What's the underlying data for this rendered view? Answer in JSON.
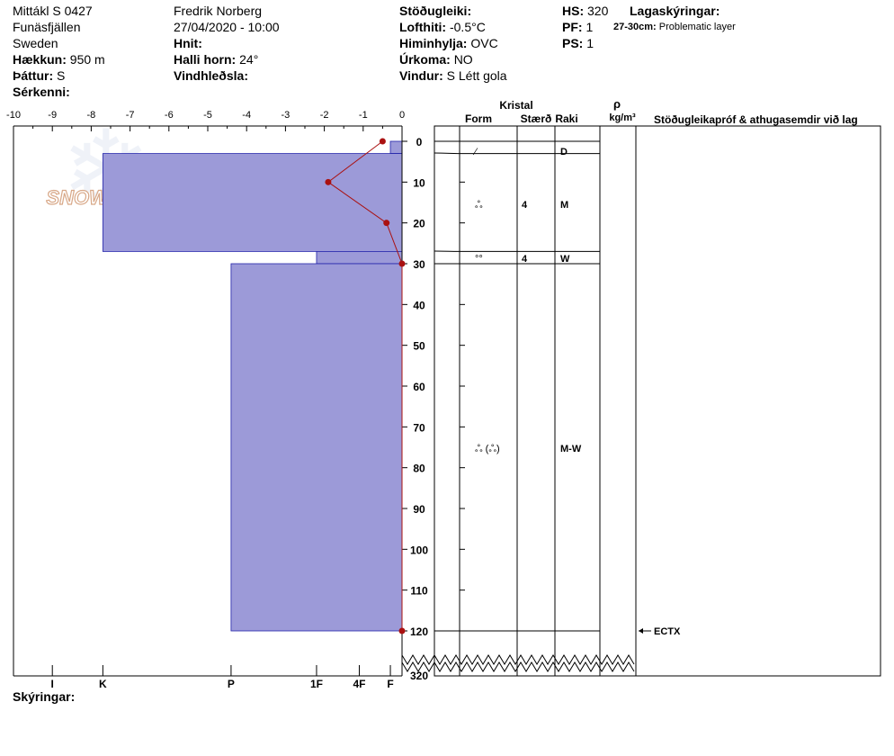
{
  "header": {
    "col1": [
      {
        "key": "",
        "value": "Mittákl S 0427"
      },
      {
        "key": "",
        "value": "Funäsfjällen"
      },
      {
        "key": "",
        "value": "Sweden"
      },
      {
        "key": "Hækkun:",
        "value": "950 m"
      },
      {
        "key": "Þáttur:",
        "value": "S"
      },
      {
        "key": "Sérkenni:",
        "value": ""
      }
    ],
    "col2": [
      {
        "key": "",
        "value": "Fredrik Norberg"
      },
      {
        "key": "",
        "value": "27/04/2020 - 10:00"
      },
      {
        "key": "Hnit:",
        "value": ""
      },
      {
        "key": "Halli horn:",
        "value": "24°"
      },
      {
        "key": "Vindhleðsla:",
        "value": ""
      }
    ],
    "col3": [
      {
        "key": "Stöðugleiki:",
        "value": ""
      },
      {
        "key": "Lofthiti:",
        "value": "-0.5°C"
      },
      {
        "key": "Himinhylja:",
        "value": "OVC"
      },
      {
        "key": "Úrkoma:",
        "value": "NO"
      },
      {
        "key": "Vindur:",
        "value": "S Létt gola"
      }
    ],
    "col4": [
      {
        "key": "HS:",
        "value": "320"
      },
      {
        "key": "PF:",
        "value": "1"
      },
      {
        "key": "PS:",
        "value": "1"
      }
    ],
    "layer_notes_title": "Lagaskýringar:",
    "layer_notes": [
      {
        "key": "27-30cm:",
        "value": "Problematic layer"
      }
    ],
    "footer_label": "Skýringar:",
    "watermark": "SNOWPILOT"
  },
  "chart_data": {
    "type": "bar",
    "colors": {
      "hardness_fill": "#9c9ad8",
      "hardness_stroke": "#2222aa",
      "temp_line": "#aa1111"
    },
    "x_axis_temperature": {
      "range": [
        -10,
        0
      ],
      "ticks": [
        "-10",
        "-9",
        "-8",
        "-7",
        "-6",
        "-5",
        "-4",
        "-3",
        "-2",
        "-1",
        "0"
      ]
    },
    "x_axis_hardness": {
      "labels": [
        {
          "label": "I",
          "temp": -9.0
        },
        {
          "label": "K",
          "temp": -7.7
        },
        {
          "label": "P",
          "temp": -4.4
        },
        {
          "label": "1F",
          "temp": -2.2
        },
        {
          "label": "4F",
          "temp": -1.1
        },
        {
          "label": "F",
          "temp": -0.3
        }
      ]
    },
    "y_axis_depth": {
      "range": [
        0,
        120
      ],
      "bottom_label": "320",
      "ticks": [
        "0",
        "10",
        "20",
        "30",
        "40",
        "50",
        "60",
        "70",
        "80",
        "90",
        "100",
        "110",
        "120"
      ]
    },
    "hardness_layers": [
      {
        "top": 0,
        "bottom": 3,
        "hardness": "F"
      },
      {
        "top": 3,
        "bottom": 27,
        "hardness": "K"
      },
      {
        "top": 27,
        "bottom": 30,
        "hardness": "1F"
      },
      {
        "top": 30,
        "bottom": 120,
        "hardness": "P"
      }
    ],
    "temperature_profile": [
      {
        "depth": 0,
        "temp": -0.5
      },
      {
        "depth": 10,
        "temp": -1.9
      },
      {
        "depth": 20,
        "temp": -0.4
      },
      {
        "depth": 30,
        "temp": 0.0
      },
      {
        "depth": 120,
        "temp": 0.0
      }
    ],
    "table_headers": {
      "kristal": "Kristal",
      "form": "Form",
      "size": "Stærð",
      "moisture": "Raki",
      "density_symbol": "ρ",
      "density_unit": "kg/m³",
      "comments": "Stöðugleikapróf & athugasemdir við lag"
    },
    "table_layers": [
      {
        "top": 0,
        "bottom": 3,
        "form": "⁄",
        "size": "",
        "moisture": "D"
      },
      {
        "top": 3,
        "bottom": 27,
        "form": "ஃ",
        "size": "4",
        "moisture": "M"
      },
      {
        "top": 27,
        "bottom": 30,
        "form": "°°",
        "size": "4",
        "moisture": "W"
      },
      {
        "top": 30,
        "bottom": 120,
        "form": "ஃ (ஃ)",
        "size": "",
        "moisture": "M-W"
      }
    ],
    "stability_tests": [
      {
        "depth": 120,
        "label": "ECTX"
      }
    ]
  }
}
